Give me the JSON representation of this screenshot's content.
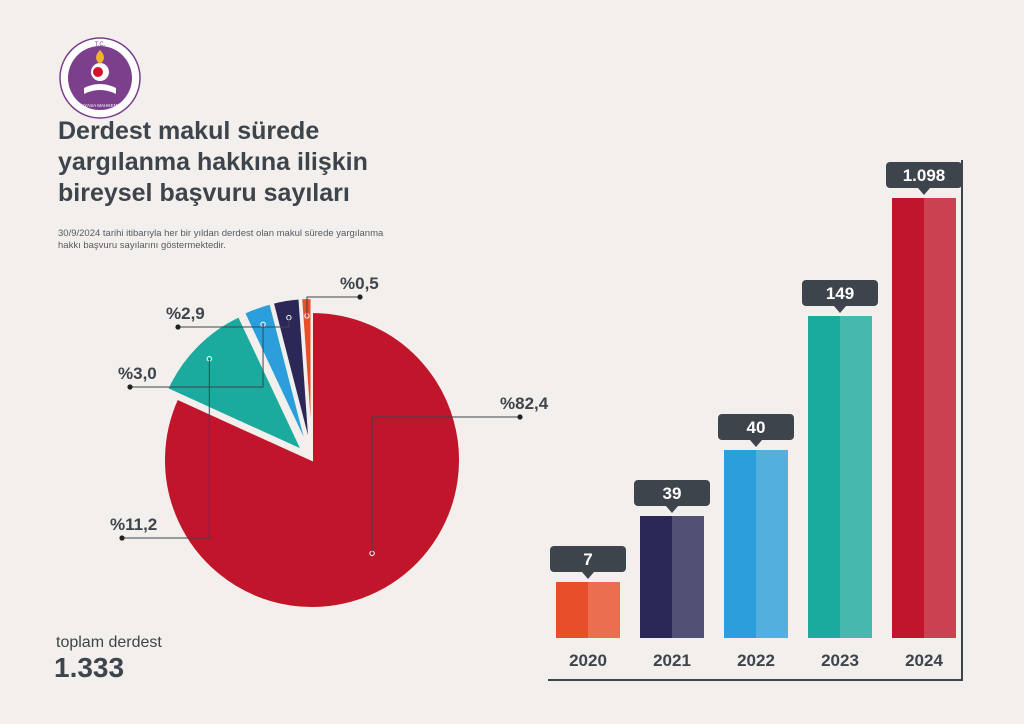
{
  "header": {
    "logo_text_top": "T.C.",
    "logo_text_bottom": "ANAYASA MAHKEMESİ",
    "title_lines": [
      "Derdest makul sürede",
      "yargılanma hakkına ilişkin",
      "bireysel başvuru sayıları"
    ],
    "subtitle_lines": [
      "30/9/2024 tarihi itibarıyla her bir yıldan derdest olan makul sürede yargılanma",
      "hakkı başvuru sayılarını göstermektedir."
    ]
  },
  "total": {
    "label": "toplam derdest",
    "value": "1.333"
  },
  "colors": {
    "2020": "#e84e2a",
    "2021": "#2b2858",
    "2022": "#2a9fdb",
    "2023": "#1aaa9e",
    "2024": "#c0152a",
    "text": "#3e444c",
    "badge": "#3e444c"
  },
  "chart_data": [
    {
      "type": "pie",
      "title": "",
      "slices": [
        {
          "name": "2024",
          "value": 82.4,
          "label": "%82,4",
          "color": "#c0152a"
        },
        {
          "name": "2023",
          "value": 11.2,
          "label": "%11,2",
          "color": "#1aaa9e"
        },
        {
          "name": "2022",
          "value": 3.0,
          "label": "%3,0",
          "color": "#2a9fdb"
        },
        {
          "name": "2021",
          "value": 2.9,
          "label": "%2,9",
          "color": "#2b2858"
        },
        {
          "name": "2020",
          "value": 0.5,
          "label": "%0,5",
          "color": "#e84e2a"
        }
      ]
    },
    {
      "type": "bar",
      "title": "",
      "categories": [
        "2020",
        "2021",
        "2022",
        "2023",
        "2024"
      ],
      "values": [
        7,
        39,
        40,
        149,
        1098
      ],
      "value_labels": [
        "7",
        "39",
        "40",
        "149",
        "1.098"
      ],
      "colors": [
        "#e84e2a",
        "#2b2858",
        "#2a9fdb",
        "#1aaa9e",
        "#c0152a"
      ],
      "ylim": [
        0,
        1098
      ]
    }
  ]
}
